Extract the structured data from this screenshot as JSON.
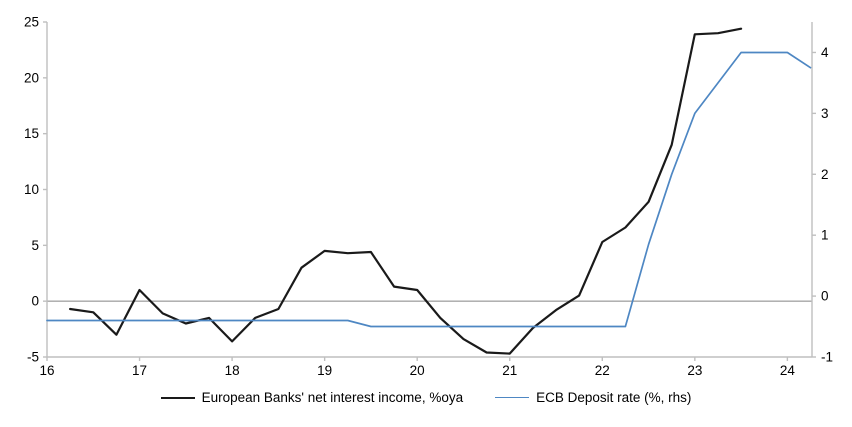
{
  "legend": [
    {
      "label": "European Banks' net interest income, %oya",
      "color": "#1a1a1a",
      "thickness": 2.2
    },
    {
      "label": "ECB Deposit rate (%, rhs)",
      "color": "#4e87c3",
      "thickness": 1.7
    }
  ],
  "colors": {
    "axis": "#bfbfbf",
    "zero_gridline": "#a6a6a6",
    "tick_text": "#000000",
    "series_black": "#1a1a1a",
    "series_blue": "#4e87c3"
  },
  "chart_data": {
    "type": "line",
    "title": "",
    "x_axis": {
      "range": [
        16,
        24.266
      ],
      "ticks": [
        16,
        17,
        18,
        19,
        20,
        21,
        22,
        23,
        24
      ]
    },
    "y_left": {
      "range": [
        -5,
        25
      ],
      "ticks": [
        -5,
        0,
        5,
        10,
        15,
        20,
        25
      ]
    },
    "y_right": {
      "range": [
        -1,
        4.5
      ],
      "ticks": [
        -1,
        0,
        1,
        2,
        3,
        4
      ]
    },
    "gridline_at": 0,
    "grid": "zero-line-only",
    "legend_position": "bottom-center",
    "series": [
      {
        "name": "European Banks' net interest income, %oya",
        "axis": "left",
        "points": [
          [
            16.25,
            -0.7
          ],
          [
            16.5,
            -1.0
          ],
          [
            16.75,
            -3.0
          ],
          [
            17.0,
            1.0
          ],
          [
            17.25,
            -1.1
          ],
          [
            17.5,
            -2.0
          ],
          [
            17.75,
            -1.5
          ],
          [
            18.0,
            -3.6
          ],
          [
            18.25,
            -1.5
          ],
          [
            18.5,
            -0.7
          ],
          [
            18.75,
            3.0
          ],
          [
            19.0,
            4.5
          ],
          [
            19.25,
            4.3
          ],
          [
            19.5,
            4.4
          ],
          [
            19.75,
            1.3
          ],
          [
            20.0,
            1.0
          ],
          [
            20.25,
            -1.5
          ],
          [
            20.5,
            -3.4
          ],
          [
            20.75,
            -4.6
          ],
          [
            21.0,
            -4.7
          ],
          [
            21.25,
            -2.4
          ],
          [
            21.5,
            -0.8
          ],
          [
            21.75,
            0.5
          ],
          [
            22.0,
            5.3
          ],
          [
            22.25,
            6.6
          ],
          [
            22.5,
            8.9
          ],
          [
            22.75,
            14.0
          ],
          [
            23.0,
            23.9
          ],
          [
            23.25,
            24.0
          ],
          [
            23.5,
            24.4
          ]
        ]
      },
      {
        "name": "ECB Deposit rate (%, rhs)",
        "axis": "right",
        "points": [
          [
            16.0,
            -0.4
          ],
          [
            16.25,
            -0.4
          ],
          [
            16.5,
            -0.4
          ],
          [
            16.75,
            -0.4
          ],
          [
            17.0,
            -0.4
          ],
          [
            17.25,
            -0.4
          ],
          [
            17.5,
            -0.4
          ],
          [
            17.75,
            -0.4
          ],
          [
            18.0,
            -0.4
          ],
          [
            18.25,
            -0.4
          ],
          [
            18.5,
            -0.4
          ],
          [
            18.75,
            -0.4
          ],
          [
            19.0,
            -0.4
          ],
          [
            19.25,
            -0.4
          ],
          [
            19.5,
            -0.5
          ],
          [
            19.75,
            -0.5
          ],
          [
            20.0,
            -0.5
          ],
          [
            20.25,
            -0.5
          ],
          [
            20.5,
            -0.5
          ],
          [
            20.75,
            -0.5
          ],
          [
            21.0,
            -0.5
          ],
          [
            21.25,
            -0.5
          ],
          [
            21.5,
            -0.5
          ],
          [
            21.75,
            -0.5
          ],
          [
            22.0,
            -0.5
          ],
          [
            22.25,
            -0.5
          ],
          [
            22.5,
            0.85
          ],
          [
            22.75,
            2.0
          ],
          [
            23.0,
            3.0
          ],
          [
            23.25,
            3.5
          ],
          [
            23.5,
            4.0
          ],
          [
            23.75,
            4.0
          ],
          [
            24.0,
            4.0
          ],
          [
            24.25,
            3.75
          ]
        ]
      }
    ]
  }
}
